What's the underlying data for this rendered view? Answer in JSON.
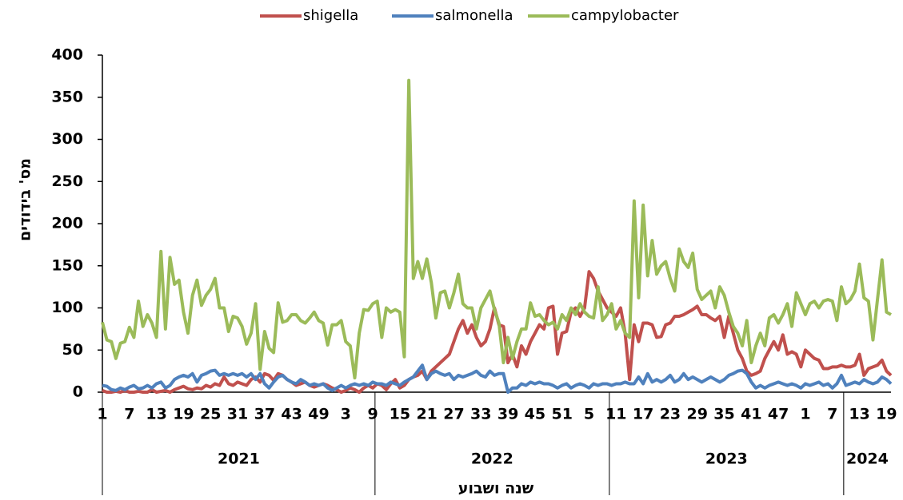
{
  "chart_data": {
    "type": "line",
    "y_label": "מס' בידודים",
    "x_label": "שנה ושבוע",
    "categories": [
      "1",
      null,
      null,
      null,
      null,
      null,
      "7",
      null,
      null,
      null,
      null,
      null,
      "13",
      null,
      null,
      null,
      null,
      null,
      "19",
      null,
      null,
      null,
      null,
      null,
      "25",
      null,
      null,
      null,
      null,
      null,
      "31",
      null,
      null,
      null,
      null,
      null,
      "37",
      null,
      null,
      null,
      null,
      null,
      "43",
      null,
      null,
      null,
      null,
      null,
      "49",
      null,
      null,
      null,
      null,
      null,
      "3",
      null,
      null,
      null,
      null,
      null,
      "9",
      null,
      null,
      null,
      null,
      null,
      "15",
      null,
      null,
      null,
      null,
      null,
      "21",
      null,
      null,
      null,
      null,
      null,
      "27",
      null,
      null,
      null,
      null,
      null,
      "33",
      null,
      null,
      null,
      null,
      null,
      "39",
      null,
      null,
      null,
      null,
      null,
      "45",
      null,
      null,
      null,
      null,
      null,
      "51",
      null,
      null,
      null,
      null,
      null,
      "5",
      null,
      null,
      null,
      null,
      null,
      "11",
      null,
      null,
      null,
      null,
      null,
      "17",
      null,
      null,
      null,
      null,
      null,
      "23",
      null,
      null,
      null,
      null,
      null,
      "29",
      null,
      null,
      null,
      null,
      null,
      "35",
      null,
      null,
      null,
      null,
      null,
      "41",
      null,
      null,
      null,
      null,
      null,
      "47",
      null,
      null,
      null,
      null,
      null,
      "1",
      null,
      null,
      null,
      null,
      null,
      "7",
      null,
      null,
      null,
      null,
      null,
      "13",
      null,
      null,
      null,
      null,
      null,
      "19",
      null
    ],
    "groups": [
      {
        "label": "2021",
        "count": 61
      },
      {
        "label": "2022",
        "count": 52
      },
      {
        "label": "2023",
        "count": 52
      },
      {
        "label": "2024",
        "count": 11
      }
    ],
    "series": [
      {
        "name": "shigella",
        "color": "#c0504d",
        "values": [
          2,
          0,
          0,
          1,
          0,
          2,
          0,
          0,
          1,
          0,
          0,
          3,
          0,
          1,
          2,
          0,
          3,
          5,
          7,
          4,
          3,
          5,
          4,
          8,
          6,
          10,
          8,
          18,
          10,
          8,
          12,
          10,
          8,
          15,
          18,
          12,
          22,
          20,
          14,
          22,
          20,
          15,
          12,
          8,
          10,
          12,
          8,
          6,
          8,
          10,
          8,
          5,
          3,
          0,
          2,
          5,
          3,
          0,
          5,
          8,
          5,
          10,
          8,
          3,
          10,
          15,
          5,
          8,
          15,
          18,
          20,
          25,
          15,
          25,
          30,
          35,
          40,
          45,
          60,
          75,
          85,
          70,
          80,
          65,
          55,
          60,
          75,
          100,
          80,
          78,
          35,
          45,
          30,
          55,
          45,
          60,
          70,
          80,
          75,
          100,
          102,
          45,
          70,
          72,
          95,
          100,
          90,
          100,
          143,
          135,
          120,
          110,
          100,
          95,
          90,
          100,
          70,
          15,
          80,
          60,
          82,
          82,
          80,
          65,
          66,
          80,
          82,
          90,
          90,
          92,
          95,
          98,
          102,
          92,
          92,
          88,
          85,
          90,
          65,
          90,
          70,
          50,
          40,
          25,
          20,
          22,
          25,
          40,
          50,
          60,
          50,
          68,
          45,
          48,
          45,
          30,
          50,
          45,
          40,
          38,
          28,
          28,
          30,
          30,
          32,
          30,
          30,
          32,
          45,
          20,
          28,
          30,
          32,
          38,
          25,
          20
        ]
      },
      {
        "name": "salmonella",
        "color": "#4f81bd",
        "values": [
          8,
          7,
          3,
          2,
          5,
          3,
          6,
          8,
          4,
          5,
          8,
          5,
          10,
          12,
          5,
          8,
          15,
          18,
          20,
          18,
          22,
          12,
          20,
          22,
          25,
          26,
          20,
          22,
          20,
          22,
          20,
          22,
          18,
          22,
          15,
          22,
          10,
          5,
          12,
          18,
          20,
          15,
          12,
          10,
          15,
          12,
          8,
          10,
          8,
          10,
          5,
          2,
          5,
          8,
          5,
          8,
          10,
          8,
          10,
          8,
          12,
          10,
          10,
          8,
          12,
          10,
          8,
          12,
          15,
          18,
          25,
          32,
          15,
          22,
          25,
          22,
          20,
          22,
          15,
          20,
          18,
          20,
          22,
          25,
          20,
          18,
          25,
          20,
          22,
          22,
          0,
          5,
          5,
          10,
          8,
          12,
          10,
          12,
          10,
          10,
          8,
          5,
          8,
          10,
          5,
          8,
          10,
          8,
          5,
          10,
          8,
          10,
          10,
          8,
          10,
          10,
          12,
          10,
          10,
          18,
          10,
          22,
          12,
          15,
          12,
          15,
          20,
          12,
          15,
          22,
          15,
          18,
          15,
          12,
          15,
          18,
          15,
          12,
          15,
          20,
          22,
          25,
          26,
          22,
          12,
          5,
          8,
          5,
          8,
          10,
          12,
          10,
          8,
          10,
          8,
          5,
          10,
          8,
          10,
          12,
          8,
          10,
          5,
          10,
          20,
          8,
          10,
          12,
          10,
          15,
          12,
          10,
          12,
          18,
          15,
          10
        ]
      },
      {
        "name": "campylobacter",
        "color": "#9bbb59",
        "values": [
          83,
          62,
          60,
          40,
          58,
          60,
          77,
          65,
          108,
          78,
          92,
          82,
          65,
          167,
          75,
          160,
          128,
          133,
          95,
          70,
          115,
          133,
          103,
          115,
          122,
          135,
          100,
          100,
          72,
          90,
          88,
          78,
          57,
          70,
          105,
          27,
          72,
          52,
          47,
          106,
          83,
          85,
          92,
          92,
          85,
          82,
          88,
          95,
          85,
          82,
          56,
          80,
          80,
          85,
          60,
          55,
          17,
          70,
          98,
          97,
          105,
          108,
          65,
          100,
          95,
          98,
          95,
          42,
          370,
          135,
          155,
          135,
          158,
          130,
          88,
          118,
          120,
          100,
          118,
          140,
          105,
          100,
          100,
          75,
          100,
          110,
          120,
          98,
          82,
          35,
          65,
          40,
          60,
          75,
          75,
          106,
          90,
          92,
          85,
          80,
          83,
          75,
          92,
          85,
          100,
          92,
          105,
          95,
          90,
          88,
          125,
          85,
          92,
          105,
          75,
          85,
          70,
          65,
          227,
          112,
          222,
          138,
          180,
          140,
          150,
          155,
          135,
          120,
          170,
          155,
          148,
          165,
          122,
          110,
          115,
          120,
          100,
          125,
          115,
          95,
          78,
          70,
          55,
          85,
          35,
          55,
          70,
          55,
          88,
          92,
          82,
          92,
          105,
          78,
          118,
          105,
          92,
          105,
          108,
          100,
          108,
          110,
          108,
          85,
          125,
          105,
          110,
          120,
          152,
          112,
          108,
          62,
          110,
          157,
          95,
          92
        ]
      }
    ],
    "ylim": [
      0,
      400
    ],
    "yticks": [
      0,
      50,
      100,
      150,
      200,
      250,
      300,
      350,
      400
    ],
    "legend": "top"
  }
}
